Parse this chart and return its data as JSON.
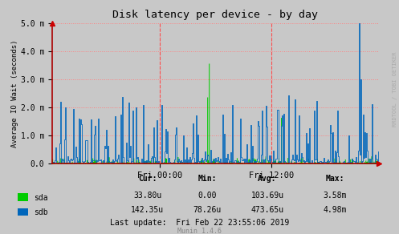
{
  "title": "Disk latency per device - by day",
  "ylabel": "Average IO Wait (seconds)",
  "xlabel_ticks": [
    "Fri 00:00",
    "Fri 12:00"
  ],
  "xlabel_ticks_pos": [
    0.33,
    0.67
  ],
  "ylim": [
    0,
    0.005
  ],
  "yticks": [
    0.0,
    0.001,
    0.002,
    0.003,
    0.004,
    0.005
  ],
  "ytick_labels": [
    "0.0",
    "1.0 m",
    "2.0 m",
    "3.0 m",
    "4.0 m",
    "5.0 m"
  ],
  "bg_color": "#C8C8C8",
  "plot_bg_color": "#C8C8C8",
  "grid_color": "#FF8080",
  "sda_color": "#00CC00",
  "sdb_color": "#0066BB",
  "vline_color": "#FF0000",
  "vline_positions": [
    0.33,
    0.67
  ],
  "stats_header": [
    "Cur:",
    "Min:",
    "Avg:",
    "Max:"
  ],
  "stats_sda": [
    "33.80u",
    "0.00",
    "103.69u",
    "3.58m"
  ],
  "stats_sdb": [
    "142.35u",
    "78.26u",
    "473.65u",
    "4.98m"
  ],
  "last_update": "Last update:  Fri Feb 22 23:55:06 2019",
  "munin_label": "Munin 1.4.6",
  "rrdtool_label": "RRDTOOL / TOBI OETIKER",
  "n_points": 400
}
